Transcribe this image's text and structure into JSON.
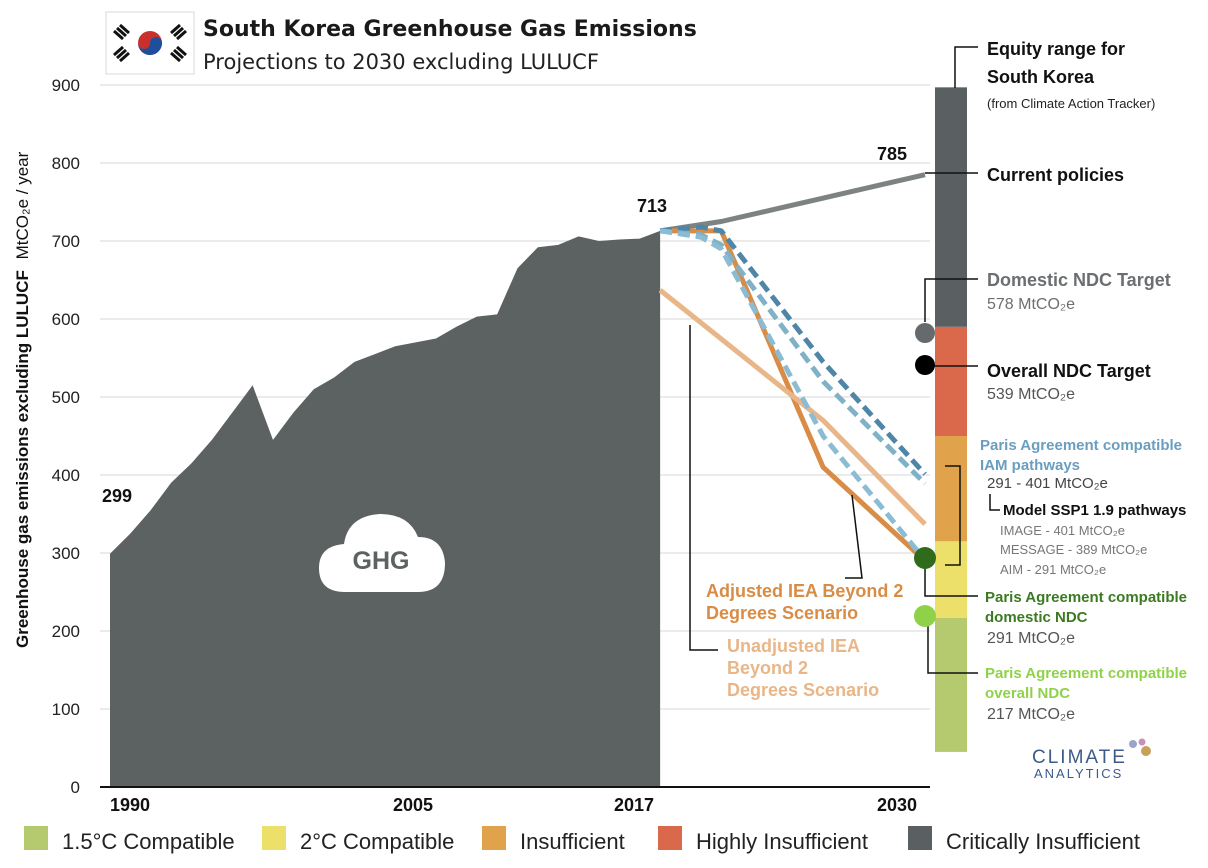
{
  "title": "South Korea Greenhouse Gas Emissions",
  "subtitle": "Projections to 2030 excluding LULUCF",
  "ylabel_bold": "Greenhouse gas emissions excluding LULUCF",
  "ylabel_unit": "MtCO₂e / year",
  "ghg_label": "GHG",
  "annotations": {
    "start_value": "299",
    "v2017": "713",
    "v2030": "785"
  },
  "right_labels": {
    "equity_title_1": "Equity range for",
    "equity_title_2": "South Korea",
    "equity_source": "(from Climate Action Tracker)",
    "current_policies": "Current policies",
    "domestic_ndc": "Domestic NDC Target",
    "domestic_ndc_value": "578 MtCO₂e",
    "overall_ndc": "Overall NDC Target",
    "overall_ndc_value": "539 MtCO₂e",
    "paris_iam_1": "Paris Agreement compatible",
    "paris_iam_2": "IAM pathways",
    "paris_iam_range": "291 - 401  MtCO₂e",
    "ssp_title": "Model SSP1 1.9 pathways",
    "ssp_image": "IMAGE - 401 MtCO₂e",
    "ssp_message": "MESSAGE - 389 MtCO₂e",
    "ssp_aim": "AIM - 291 MtCO₂e",
    "paris_dom_1": "Paris Agreement compatible",
    "paris_dom_2": "domestic NDC",
    "paris_dom_value": "291 MtCO₂e",
    "paris_overall_1": "Paris Agreement compatible",
    "paris_overall_2": "overall NDC",
    "paris_overall_value": "217 MtCO₂e"
  },
  "scenario_labels": {
    "adjusted_1": "Adjusted IEA Beyond 2",
    "adjusted_2": "Degrees Scenario",
    "unadjusted_1": "Unadjusted IEA",
    "unadjusted_2": "Beyond 2",
    "unadjusted_3": "Degrees Scenario"
  },
  "logo": {
    "line1": "CLIMATE",
    "line2": "ANALYTICS"
  },
  "legend": [
    {
      "label": "1.5°C Compatible",
      "color": "#b5c96e"
    },
    {
      "label": "2°C Compatible",
      "color": "#ede06a"
    },
    {
      "label": "Insufficient",
      "color": "#e0a24a"
    },
    {
      "label": "Highly Insufficient",
      "color": "#d9694a"
    },
    {
      "label": "Critically Insufficient",
      "color": "#5a5f62"
    }
  ],
  "chart_data": {
    "type": "area",
    "ylim": [
      0,
      900
    ],
    "yticks": [
      0,
      100,
      200,
      300,
      400,
      500,
      600,
      700,
      800,
      900
    ],
    "xticks": [
      "1990",
      "2005",
      "2017",
      "2030"
    ],
    "grid": true,
    "historical": {
      "name": "GHG",
      "color": "#5c6162",
      "x": [
        1990,
        1991,
        1992,
        1993,
        1994,
        1995,
        1996,
        1997,
        1998,
        1999,
        2000,
        2001,
        2002,
        2003,
        2004,
        2005,
        2006,
        2007,
        2008,
        2009,
        2010,
        2011,
        2012,
        2013,
        2014,
        2015,
        2016,
        2017
      ],
      "y": [
        299,
        325,
        355,
        390,
        415,
        445,
        480,
        515,
        445,
        480,
        510,
        525,
        545,
        555,
        565,
        570,
        575,
        590,
        603,
        606,
        665,
        692,
        695,
        706,
        700,
        702,
        703,
        713
      ]
    },
    "series": [
      {
        "name": "Current policies",
        "color": "#7d8282",
        "x": [
          2017,
          2020,
          2030
        ],
        "y": [
          713,
          725,
          785
        ]
      },
      {
        "name": "Adjusted IEA Beyond 2 Degrees Scenario",
        "color": "#d98c45",
        "x": [
          2017,
          2020,
          2025,
          2030
        ],
        "y": [
          713,
          713,
          410,
          290
        ]
      },
      {
        "name": "Unadjusted IEA Beyond 2 Degrees Scenario",
        "color": "#e8b688",
        "x": [
          2017,
          2025,
          2030
        ],
        "y": [
          637,
          470,
          337
        ]
      },
      {
        "name": "IMAGE",
        "color": "#4f86a8",
        "dashed": true,
        "x": [
          2017,
          2019,
          2020,
          2025,
          2030
        ],
        "y": [
          713,
          718,
          713,
          545,
          401
        ]
      },
      {
        "name": "MESSAGE",
        "color": "#7fb1c8",
        "dashed": true,
        "x": [
          2017,
          2019,
          2020,
          2025,
          2030
        ],
        "y": [
          713,
          708,
          695,
          520,
          389
        ]
      },
      {
        "name": "AIM",
        "color": "#8cbcd3",
        "dashed": true,
        "x": [
          2017,
          2019,
          2020,
          2025,
          2030
        ],
        "y": [
          713,
          705,
          690,
          450,
          291
        ]
      }
    ],
    "equity_range": [
      {
        "rating": "1.5°C Compatible",
        "color": "#b5c96e",
        "from": 45,
        "to": 217
      },
      {
        "rating": "2°C Compatible",
        "color": "#ede06a",
        "from": 217,
        "to": 315
      },
      {
        "rating": "Insufficient",
        "color": "#e0a24a",
        "from": 315,
        "to": 450
      },
      {
        "rating": "Highly Insufficient",
        "color": "#d9694a",
        "from": 450,
        "to": 590
      },
      {
        "rating": "Critically Insufficient",
        "color": "#5a5f62",
        "from": 590,
        "to": 897
      }
    ],
    "targets": [
      {
        "name": "Domestic NDC Target",
        "value": 578,
        "color": "#666a6c"
      },
      {
        "name": "Overall NDC Target",
        "value": 539,
        "color": "#000000"
      },
      {
        "name": "Paris Agreement compatible domestic NDC",
        "value": 291,
        "color": "#2f6b1a"
      },
      {
        "name": "Paris Agreement compatible overall NDC",
        "value": 217,
        "color": "#8fd24a"
      }
    ]
  }
}
